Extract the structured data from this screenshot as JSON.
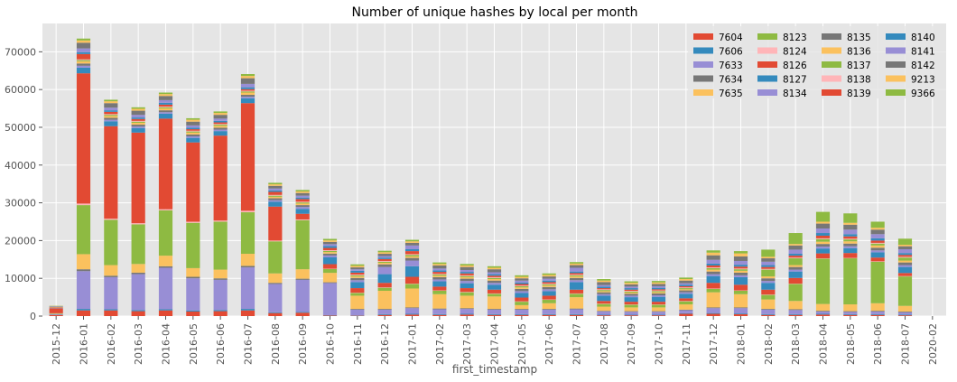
{
  "chart_data": {
    "type": "bar",
    "stacked": true,
    "title": "Number of unique hashes by local per month",
    "xlabel": "first_timestamp",
    "ylabel": "",
    "ylim": [
      0,
      77500
    ],
    "yticks": [
      0,
      10000,
      20000,
      30000,
      40000,
      50000,
      60000,
      70000
    ],
    "grid": true,
    "legend_position": "top-right",
    "legend_columns": 4,
    "categories": [
      "2015-12",
      "2016-01",
      "2016-02",
      "2016-03",
      "2016-04",
      "2016-05",
      "2016-06",
      "2016-07",
      "2016-08",
      "2016-09",
      "2016-10",
      "2016-11",
      "2016-12",
      "2017-01",
      "2017-02",
      "2017-03",
      "2017-04",
      "2017-05",
      "2017-06",
      "2017-07",
      "2017-08",
      "2017-09",
      "2017-10",
      "2017-11",
      "2017-12",
      "2018-01",
      "2018-02",
      "2018-03",
      "2018-04",
      "2018-05",
      "2018-06",
      "2018-07",
      "2020-02"
    ],
    "series": [
      {
        "name": "7604",
        "color": "#E24A33",
        "values": [
          300,
          1500,
          1500,
          1300,
          1500,
          1200,
          1300,
          1500,
          800,
          900,
          150,
          100,
          300,
          400,
          300,
          400,
          300,
          300,
          300,
          300,
          200,
          200,
          200,
          600,
          600,
          500,
          300,
          300,
          400,
          300,
          300,
          200,
          0
        ]
      },
      {
        "name": "7606",
        "color": "#348ABD",
        "values": [
          100,
          400,
          300,
          300,
          300,
          300,
          300,
          400,
          200,
          200,
          100,
          100,
          200,
          200,
          200,
          200,
          200,
          200,
          200,
          200,
          150,
          150,
          150,
          150,
          200,
          200,
          200,
          200,
          200,
          200,
          200,
          200,
          0
        ]
      },
      {
        "name": "7633",
        "color": "#988ED5",
        "values": [
          100,
          10000,
          8500,
          9500,
          11000,
          8500,
          8000,
          11000,
          7500,
          8500,
          8500,
          1500,
          1200,
          1500,
          1300,
          1300,
          1200,
          1200,
          1200,
          1300,
          900,
          800,
          800,
          800,
          1300,
          1400,
          1200,
          1100,
          600,
          600,
          700,
          600,
          0
        ]
      },
      {
        "name": "7634",
        "color": "#777777",
        "values": [
          50,
          500,
          400,
          400,
          400,
          400,
          400,
          400,
          300,
          300,
          200,
          200,
          200,
          200,
          200,
          200,
          200,
          200,
          200,
          200,
          150,
          150,
          150,
          150,
          200,
          200,
          200,
          200,
          200,
          200,
          200,
          200,
          0
        ]
      },
      {
        "name": "7635",
        "color": "#FBC15E",
        "values": [
          100,
          4000,
          2800,
          2300,
          2800,
          2300,
          2300,
          3200,
          2500,
          2500,
          2500,
          3500,
          4800,
          5000,
          3800,
          3300,
          3300,
          1000,
          1500,
          3000,
          1100,
          1000,
          1000,
          1400,
          4000,
          3500,
          2500,
          2200,
          1800,
          1800,
          2000,
          1500,
          0
        ]
      },
      {
        "name": "8123",
        "color": "#8EBA42",
        "values": [
          100,
          13000,
          12000,
          10500,
          12000,
          12000,
          12700,
          11000,
          8500,
          13000,
          1000,
          700,
          800,
          1200,
          900,
          900,
          700,
          900,
          900,
          900,
          700,
          700,
          700,
          800,
          900,
          900,
          1200,
          4500,
          12000,
          12200,
          11000,
          7800,
          0
        ]
      },
      {
        "name": "8124",
        "color": "#FFB5B8",
        "values": [
          0,
          400,
          300,
          300,
          300,
          300,
          300,
          400,
          200,
          200,
          100,
          100,
          100,
          100,
          100,
          100,
          100,
          100,
          100,
          100,
          100,
          100,
          100,
          100,
          100,
          100,
          100,
          100,
          100,
          100,
          100,
          100,
          0
        ]
      },
      {
        "name": "8126",
        "color": "#E24A33",
        "values": [
          1300,
          34500,
          24500,
          24000,
          24000,
          21000,
          22500,
          28500,
          9000,
          1500,
          1200,
          1200,
          1200,
          1800,
          1000,
          1000,
          1000,
          1000,
          1000,
          1000,
          700,
          700,
          700,
          700,
          1500,
          1500,
          1300,
          1500,
          1300,
          1300,
          1000,
          800,
          0
        ]
      },
      {
        "name": "8127",
        "color": "#348ABD",
        "values": [
          50,
          1500,
          1300,
          1200,
          1300,
          1200,
          1200,
          1300,
          1300,
          1300,
          1800,
          1600,
          2300,
          2800,
          1400,
          1300,
          1300,
          1200,
          1200,
          2000,
          1400,
          1200,
          1300,
          1200,
          1800,
          2000,
          1800,
          1700,
          1300,
          1300,
          1400,
          1600,
          0
        ]
      },
      {
        "name": "8134",
        "color": "#988ED5",
        "values": [
          50,
          500,
          400,
          400,
          400,
          400,
          400,
          400,
          400,
          500,
          500,
          500,
          1900,
          1500,
          500,
          600,
          500,
          500,
          500,
          500,
          400,
          400,
          400,
          400,
          500,
          500,
          500,
          500,
          500,
          500,
          500,
          500,
          0
        ]
      },
      {
        "name": "8135",
        "color": "#777777",
        "values": [
          50,
          600,
          500,
          500,
          500,
          500,
          500,
          500,
          500,
          500,
          500,
          600,
          700,
          700,
          600,
          600,
          600,
          600,
          600,
          600,
          500,
          500,
          500,
          500,
          700,
          700,
          700,
          700,
          700,
          700,
          700,
          700,
          0
        ]
      },
      {
        "name": "8136",
        "color": "#FBC15E",
        "values": [
          50,
          600,
          500,
          500,
          500,
          500,
          500,
          600,
          400,
          400,
          400,
          400,
          400,
          400,
          400,
          400,
          400,
          400,
          400,
          400,
          300,
          300,
          300,
          300,
          500,
          500,
          500,
          500,
          600,
          600,
          600,
          500,
          0
        ]
      },
      {
        "name": "8137",
        "color": "#8EBA42",
        "values": [
          50,
          300,
          300,
          300,
          300,
          300,
          300,
          300,
          300,
          300,
          300,
          300,
          300,
          400,
          300,
          300,
          300,
          300,
          300,
          300,
          300,
          300,
          300,
          300,
          400,
          400,
          1800,
          1800,
          700,
          500,
          500,
          800,
          0
        ]
      },
      {
        "name": "8138",
        "color": "#FFB5B8",
        "values": [
          0,
          200,
          200,
          200,
          200,
          200,
          200,
          200,
          200,
          200,
          200,
          200,
          200,
          200,
          200,
          200,
          200,
          200,
          200,
          200,
          200,
          200,
          200,
          200,
          200,
          200,
          200,
          200,
          200,
          200,
          200,
          200,
          0
        ]
      },
      {
        "name": "8139",
        "color": "#E24A33",
        "values": [
          100,
          1400,
          600,
          500,
          500,
          400,
          400,
          400,
          800,
          700,
          600,
          500,
          500,
          800,
          500,
          500,
          400,
          400,
          400,
          400,
          300,
          300,
          300,
          300,
          500,
          500,
          500,
          500,
          700,
          600,
          600,
          500,
          0
        ]
      },
      {
        "name": "8140",
        "color": "#348ABD",
        "values": [
          50,
          500,
          400,
          400,
          500,
          400,
          400,
          500,
          400,
          400,
          500,
          500,
          400,
          500,
          400,
          400,
          400,
          400,
          400,
          400,
          400,
          400,
          400,
          400,
          500,
          500,
          500,
          500,
          700,
          600,
          600,
          500,
          0
        ]
      },
      {
        "name": "8141",
        "color": "#988ED5",
        "values": [
          50,
          1000,
          700,
          700,
          700,
          600,
          600,
          900,
          500,
          500,
          500,
          400,
          400,
          1000,
          500,
          500,
          500,
          500,
          500,
          1000,
          400,
          400,
          400,
          400,
          1000,
          1000,
          900,
          1100,
          1200,
          1200,
          1100,
          1000,
          0
        ]
      },
      {
        "name": "8142",
        "color": "#777777",
        "values": [
          100,
          1500,
          1200,
          1100,
          1100,
          1000,
          1000,
          1500,
          700,
          700,
          600,
          500,
          600,
          700,
          800,
          800,
          800,
          600,
          600,
          700,
          800,
          600,
          600,
          700,
          1200,
          1200,
          900,
          1100,
          1300,
          1300,
          1200,
          800,
          0
        ]
      },
      {
        "name": "9213",
        "color": "#FBC15E",
        "values": [
          100,
          600,
          500,
          500,
          500,
          500,
          500,
          600,
          400,
          400,
          400,
          400,
          400,
          400,
          400,
          400,
          400,
          400,
          400,
          400,
          400,
          400,
          400,
          400,
          700,
          800,
          400,
          400,
          500,
          500,
          500,
          400,
          0
        ]
      },
      {
        "name": "9366",
        "color": "#8EBA42",
        "values": [
          50,
          500,
          400,
          400,
          400,
          400,
          400,
          500,
          400,
          400,
          400,
          400,
          400,
          400,
          400,
          400,
          400,
          400,
          400,
          400,
          400,
          400,
          400,
          400,
          600,
          600,
          1900,
          2900,
          2600,
          2500,
          1600,
          1600,
          0
        ]
      }
    ]
  }
}
